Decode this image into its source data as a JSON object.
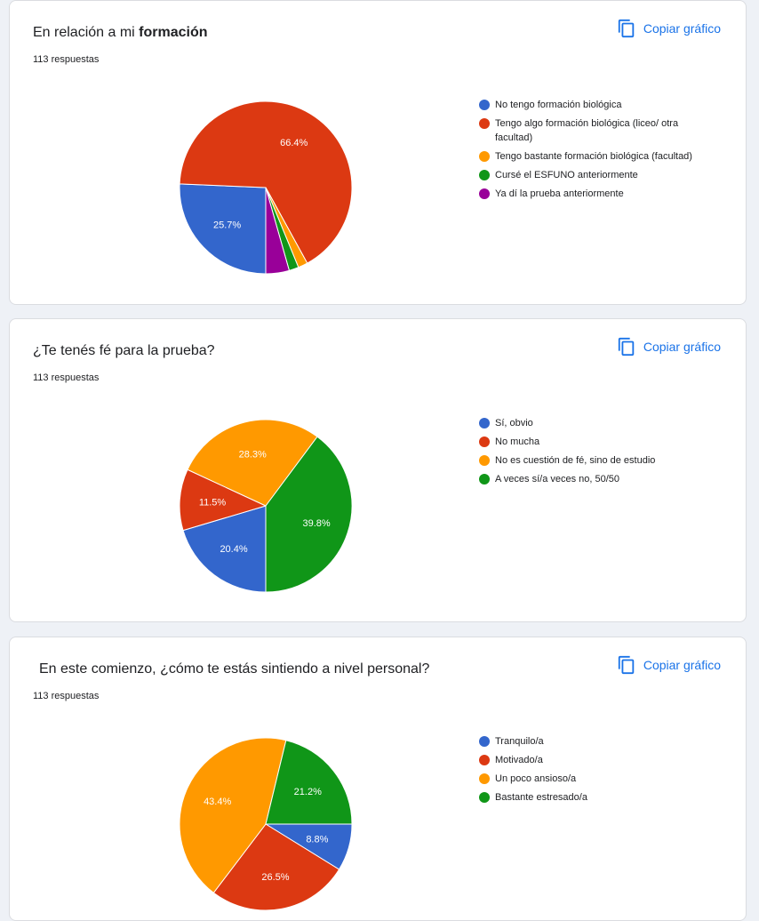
{
  "copy_label": "Copiar gráfico",
  "copy_icon": "copy-icon",
  "chart_data": [
    {
      "type": "pie",
      "title_prefix": "En relación a mi ",
      "title_bold": "formación",
      "responses": "113 respuestas",
      "start_angle": 90,
      "slices": [
        {
          "label": "No tengo formación biológica",
          "value": 25.7,
          "display": "25.7%",
          "color": "#3366cc"
        },
        {
          "label": "Tengo algo formación biológica (liceo/ otra facultad)",
          "value": 66.4,
          "display": "66.4%",
          "color": "#dc3912"
        },
        {
          "label": "Tengo bastante formación biológica (facultad)",
          "value": 1.8,
          "display": "",
          "color": "#ff9900"
        },
        {
          "label": "Cursé el ESFUNO anteriormente",
          "value": 1.8,
          "display": "",
          "color": "#109618"
        },
        {
          "label": "Ya dí la prueba anteriormente",
          "value": 4.4,
          "display": "",
          "color": "#990099"
        }
      ]
    },
    {
      "type": "pie",
      "title_prefix": "¿Te tenés fé para la prueba?",
      "title_bold": "",
      "responses": "113 respuestas",
      "start_angle": 90,
      "slices": [
        {
          "label": "Sí, obvio",
          "value": 20.4,
          "display": "20.4%",
          "color": "#3366cc"
        },
        {
          "label": "No mucha",
          "value": 11.5,
          "display": "11.5%",
          "color": "#dc3912"
        },
        {
          "label": "No es cuestión de fé, sino de estudio",
          "value": 28.3,
          "display": "28.3%",
          "color": "#ff9900"
        },
        {
          "label": "A veces sí/a veces no, 50/50",
          "value": 39.8,
          "display": "39.8%",
          "color": "#109618"
        }
      ]
    },
    {
      "type": "pie",
      "title_prefix": "En este comienzo, ¿cómo te estás sintiendo a nivel personal?",
      "title_bold": "",
      "responses": "113 respuestas",
      "start_angle": 0,
      "slices": [
        {
          "label": "Tranquilo/a",
          "value": 8.8,
          "display": "8.8%",
          "color": "#3366cc"
        },
        {
          "label": "Motivado/a",
          "value": 26.5,
          "display": "26.5%",
          "color": "#dc3912"
        },
        {
          "label": "Un poco ansioso/a",
          "value": 43.4,
          "display": "43.4%",
          "color": "#ff9900"
        },
        {
          "label": "Bastante estresado/a",
          "value": 21.2,
          "display": "21.2%",
          "color": "#109618"
        }
      ]
    }
  ]
}
